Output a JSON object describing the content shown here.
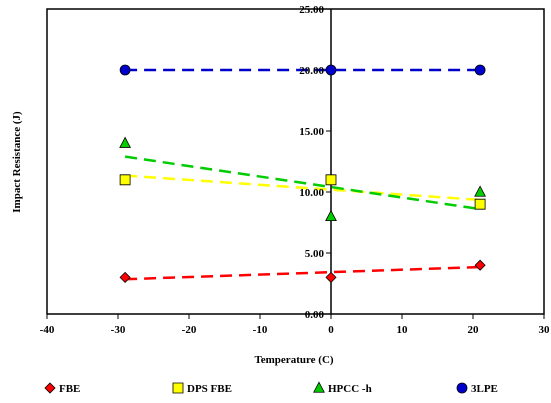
{
  "chart_data": {
    "type": "scatter",
    "xlabel": "Temperature (C)",
    "ylabel": "Impact Resistance (J)",
    "xlim": [
      -40,
      30
    ],
    "ylim": [
      0,
      25
    ],
    "x_ticks": [
      "-40",
      "-30",
      "-20",
      "-10",
      "0",
      "10",
      "20",
      "30"
    ],
    "y_ticks": [
      "0.00",
      "5.00",
      "10.00",
      "15.00",
      "20.00",
      "25.00"
    ],
    "grid": false,
    "legend_position": "bottom",
    "series": [
      {
        "name": "FBE",
        "marker": "diamond",
        "color": "#ff0000",
        "x": [
          -29,
          0,
          21
        ],
        "y": [
          3,
          3,
          4
        ],
        "trendline": {
          "from": [
            -29,
            2.85
          ],
          "to": [
            21,
            3.85
          ]
        }
      },
      {
        "name": "DPS FBE",
        "marker": "square",
        "color": "#ffff00",
        "x": [
          -29,
          0,
          21
        ],
        "y": [
          11,
          11,
          9
        ],
        "trendline": {
          "from": [
            -29,
            11.35
          ],
          "to": [
            21,
            9.35
          ]
        }
      },
      {
        "name": "HPCC -h",
        "marker": "triangle",
        "color": "#00cc00",
        "x": [
          -29,
          0,
          21
        ],
        "y": [
          14,
          8,
          10
        ],
        "trendline": {
          "from": [
            -29,
            12.9
          ],
          "to": [
            21,
            8.6
          ]
        }
      },
      {
        "name": "3LPE",
        "marker": "circle",
        "color": "#0000cc",
        "x": [
          -29,
          0,
          21
        ],
        "y": [
          20,
          20,
          20
        ],
        "trendline": {
          "from": [
            -29,
            20
          ],
          "to": [
            21,
            20
          ]
        }
      }
    ]
  }
}
